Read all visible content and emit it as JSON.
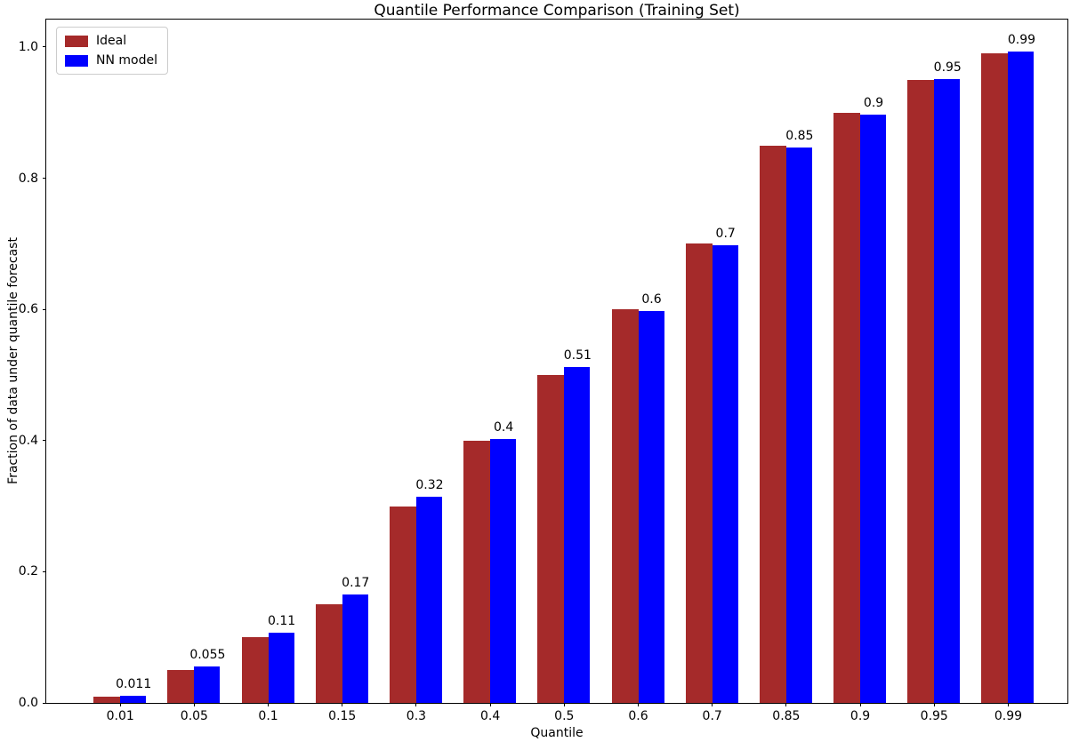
{
  "chart_data": {
    "type": "bar",
    "title": "Quantile Performance Comparison (Training Set)",
    "xlabel": "Quantile",
    "ylabel": "Fraction of data under quantile forecast",
    "categories": [
      "0.01",
      "0.05",
      "0.1",
      "0.15",
      "0.3",
      "0.4",
      "0.5",
      "0.6",
      "0.7",
      "0.85",
      "0.9",
      "0.95",
      "0.99"
    ],
    "series": [
      {
        "name": "Ideal",
        "color": "#A52A2A",
        "values": [
          0.01,
          0.05,
          0.1,
          0.15,
          0.3,
          0.4,
          0.5,
          0.6,
          0.7,
          0.85,
          0.9,
          0.95,
          0.99
        ]
      },
      {
        "name": "NN model",
        "color": "#0000FF",
        "values": [
          0.011,
          0.055,
          0.107,
          0.165,
          0.315,
          0.403,
          0.512,
          0.597,
          0.698,
          0.847,
          0.897,
          0.951,
          0.993
        ]
      }
    ],
    "bar_labels": [
      "0.011",
      "0.055",
      "0.11",
      "0.17",
      "0.32",
      "0.4",
      "0.51",
      "0.6",
      "0.7",
      "0.85",
      "0.9",
      "0.95",
      "0.99"
    ],
    "yticks": [
      "0.0",
      "0.2",
      "0.4",
      "0.6",
      "0.8",
      "1.0"
    ],
    "ylim": [
      0,
      1.042
    ],
    "xlim_units": 13.8,
    "legend_position": "upper left",
    "grid": false
  }
}
